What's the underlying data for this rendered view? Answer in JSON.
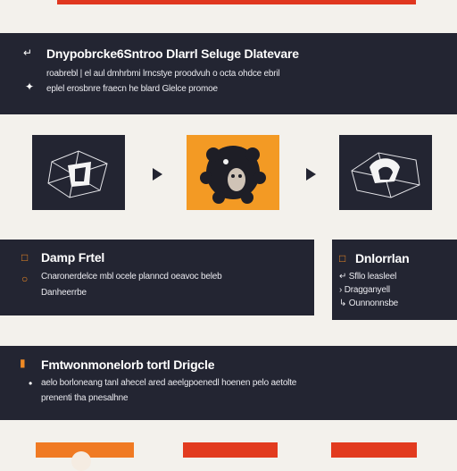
{
  "section1": {
    "title": "Dnypobrcke6Sntroo Dlarrl Seluge Dlatevare",
    "line1": "roabrebl | el aul dmhrbmi lrncstye proodvuh o octa ohdce ebril",
    "line2": "eplel erosbnre fraecn he blard Glelce promoe",
    "icons": [
      "expand-icon",
      "sparkle-icon"
    ]
  },
  "flow": {
    "steps": [
      {
        "icon": "wireframe-object-icon"
      },
      {
        "icon": "face-gear-icon"
      },
      {
        "icon": "wireframe-hat-icon"
      }
    ]
  },
  "section2": {
    "title": "Damp Frtel",
    "line1": "Cnaronerdelce mbl ocele planncd oeavoc beleb",
    "line2": "Danheerrbe"
  },
  "section3": {
    "title": "Dnlorrlan",
    "items": [
      "Sfllo leasleel",
      "Dragganyell",
      "Ounnonnsbe"
    ]
  },
  "section4": {
    "title": "Fmtwonmonelorb tortl Drigcle",
    "line1": "aelo borloneang tanl ahecel ared aeelgpoenedl hoenen pelo aetolte",
    "line2": "prenenti tha pnesalhne"
  },
  "colors": {
    "panel": "#232532",
    "background": "#f3f1ec",
    "accent_orange": "#f39a24",
    "accent_red": "#e0371f"
  }
}
